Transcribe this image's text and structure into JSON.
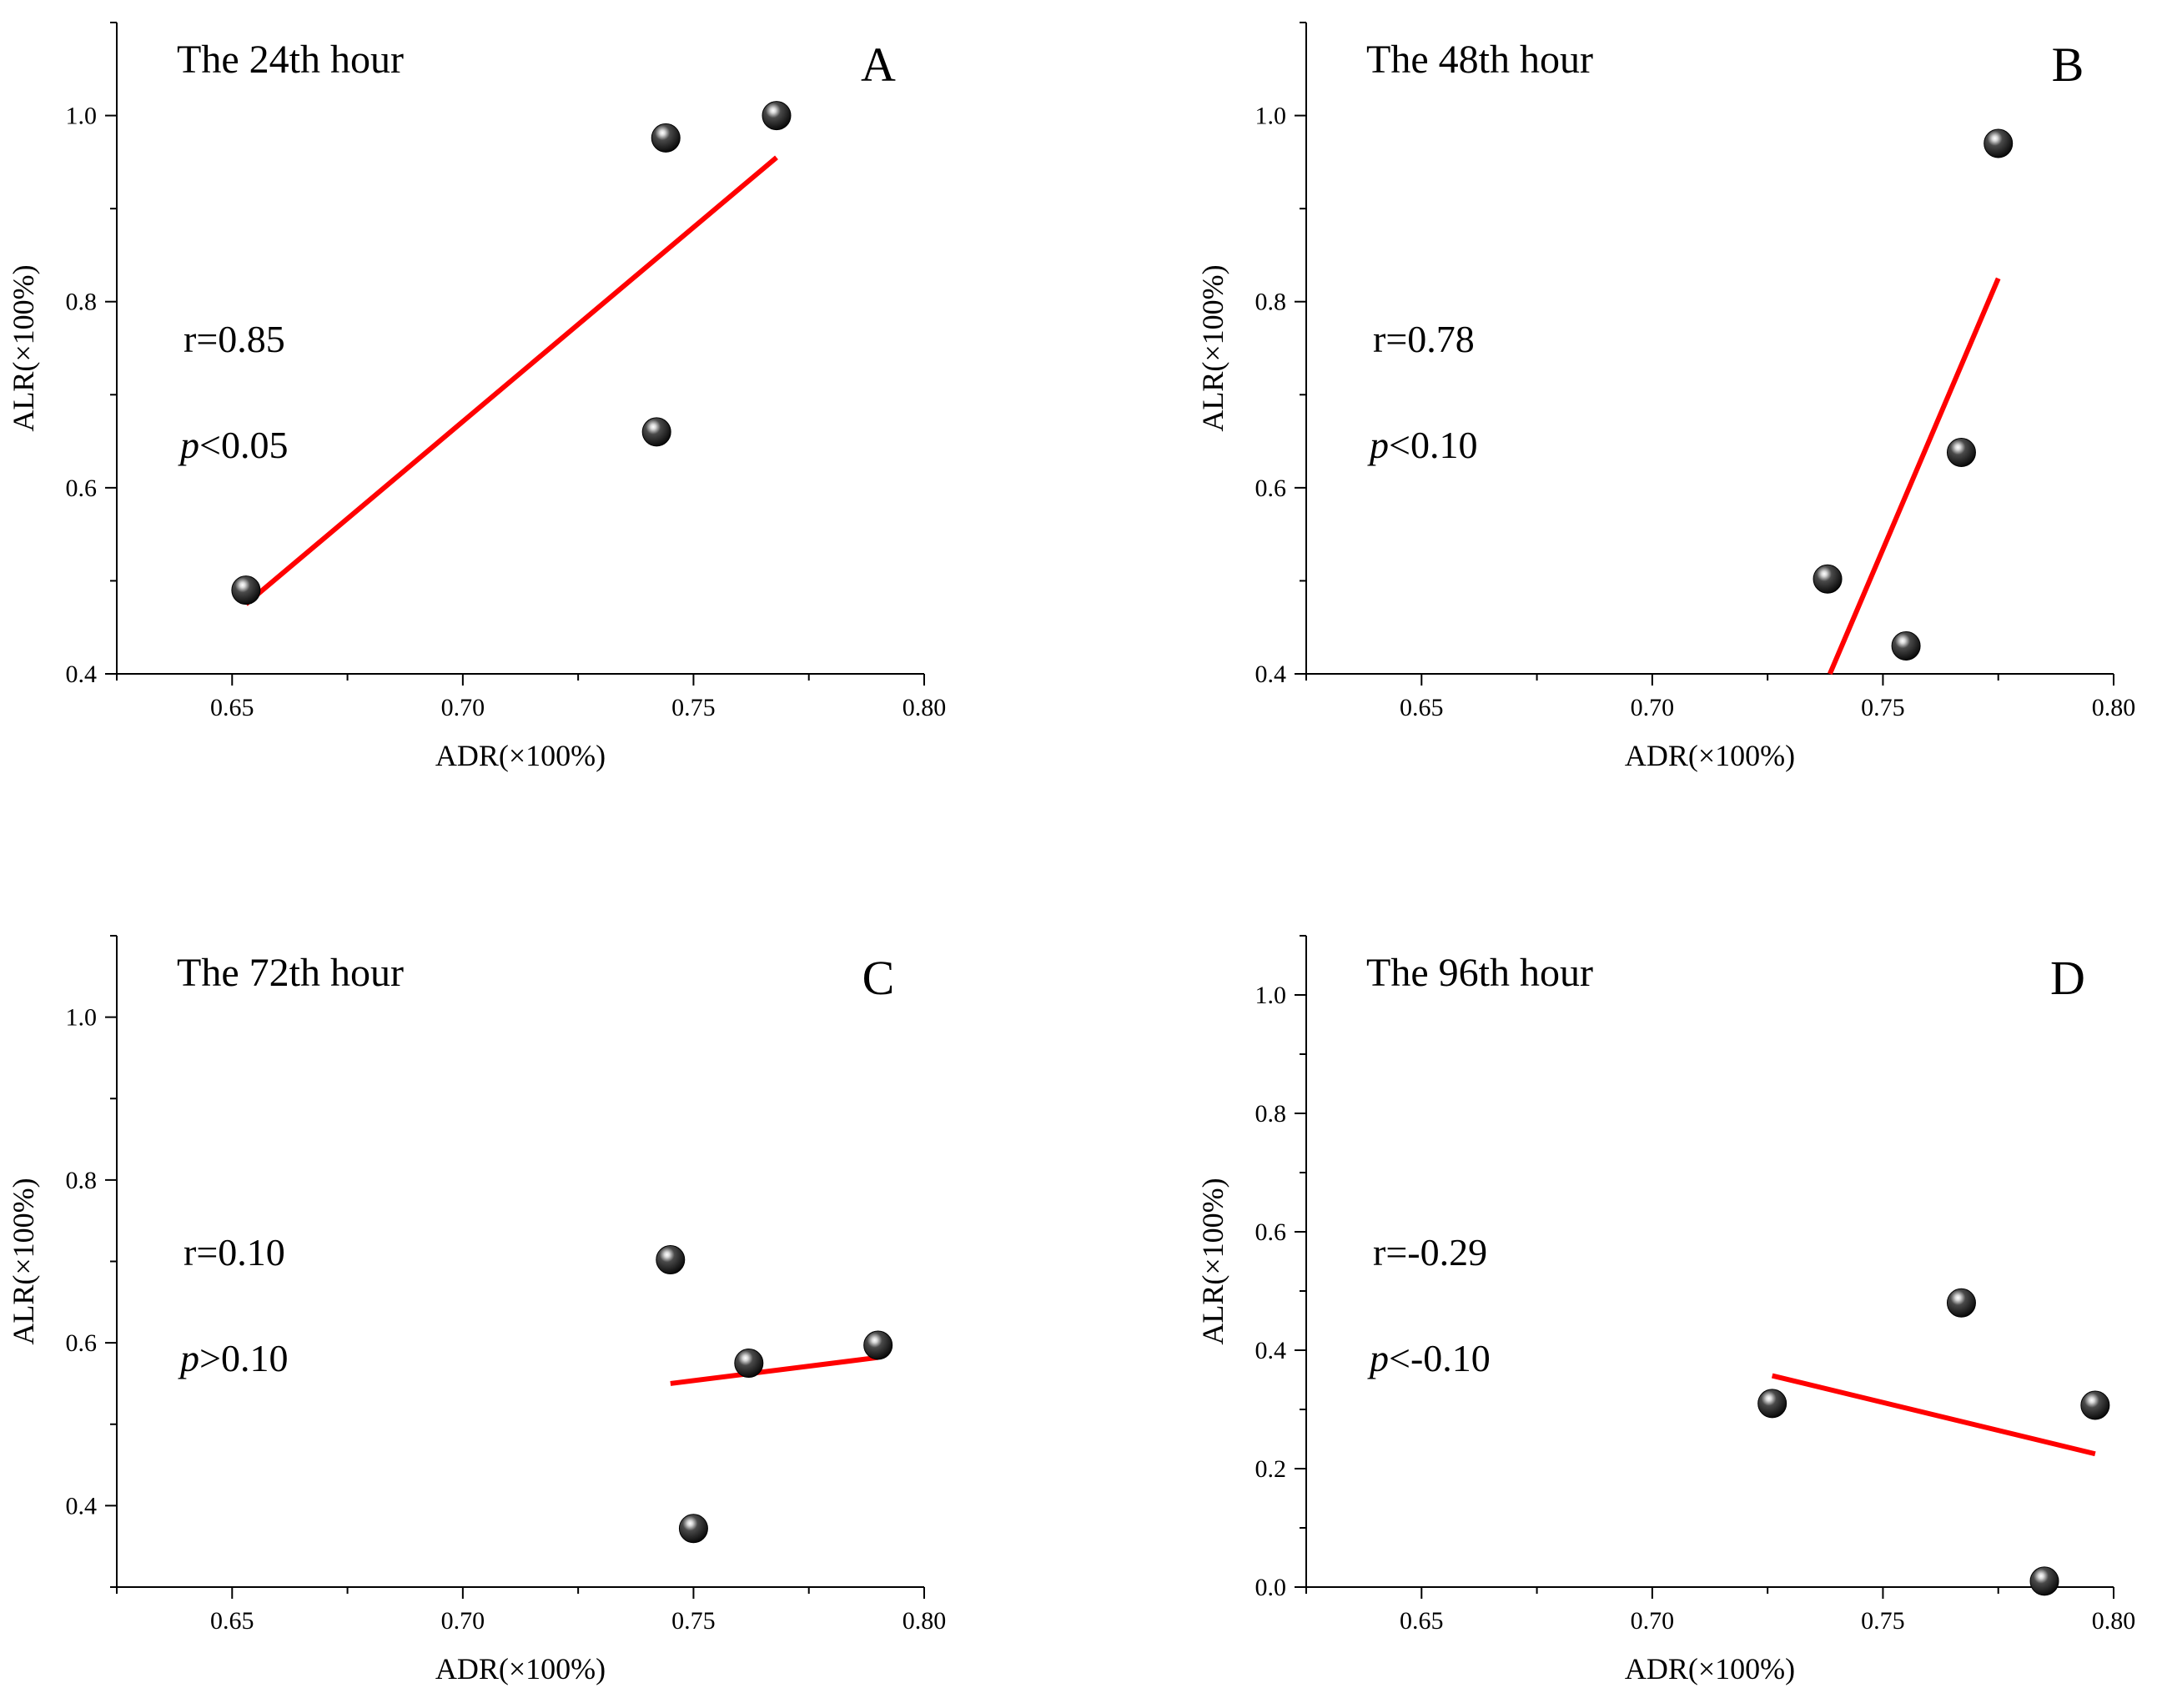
{
  "figure": {
    "colors": {
      "fit_line": "#ff0000",
      "point": "#000000",
      "axis": "#000000"
    }
  },
  "chart_data": [
    {
      "type": "scatter",
      "panel": "A",
      "title": "The 24th hour",
      "xlabel": "ADR(×100%)",
      "ylabel": "ALR(×100%)",
      "xlim": [
        0.625,
        0.8
      ],
      "ylim": [
        0.4,
        1.1
      ],
      "xticks": [
        "0.65",
        "0.70",
        "0.75",
        "0.80"
      ],
      "xtick_values": [
        0.65,
        0.7,
        0.75,
        0.8
      ],
      "yticks": [
        "0.4",
        "0.6",
        "0.8",
        "1.0"
      ],
      "ytick_values": [
        0.4,
        0.6,
        0.8,
        1.0
      ],
      "points": [
        [
          0.653,
          0.49
        ],
        [
          0.742,
          0.66
        ],
        [
          0.744,
          0.976
        ],
        [
          0.768,
          1.0
        ]
      ],
      "fit_line": [
        [
          0.653,
          0.475
        ],
        [
          0.768,
          0.955
        ]
      ],
      "r_label": "r=0.85",
      "p_symbol": "p",
      "p_rest": "<0.05"
    },
    {
      "type": "scatter",
      "panel": "B",
      "title": "The 48th hour",
      "xlabel": "ADR(×100%)",
      "ylabel": "ALR(×100%)",
      "xlim": [
        0.625,
        0.8
      ],
      "ylim": [
        0.4,
        1.1
      ],
      "xticks": [
        "0.65",
        "0.70",
        "0.75",
        "0.80"
      ],
      "xtick_values": [
        0.65,
        0.7,
        0.75,
        0.8
      ],
      "yticks": [
        "0.4",
        "0.6",
        "0.8",
        "1.0"
      ],
      "ytick_values": [
        0.4,
        0.6,
        0.8,
        1.0
      ],
      "points": [
        [
          0.738,
          0.502
        ],
        [
          0.755,
          0.43
        ],
        [
          0.767,
          0.638
        ],
        [
          0.775,
          0.97
        ]
      ],
      "fit_line": [
        [
          0.7385,
          0.4
        ],
        [
          0.775,
          0.825
        ]
      ],
      "r_label": "r=0.78",
      "p_symbol": "p",
      "p_rest": "<0.10"
    },
    {
      "type": "scatter",
      "panel": "C",
      "title": "The 72th hour",
      "xlabel": "ADR(×100%)",
      "ylabel": "ALR(×100%)",
      "xlim": [
        0.625,
        0.8
      ],
      "ylim": [
        0.3,
        1.1
      ],
      "xticks": [
        "0.65",
        "0.70",
        "0.75",
        "0.80"
      ],
      "xtick_values": [
        0.65,
        0.7,
        0.75,
        0.8
      ],
      "yticks": [
        "0.4",
        "0.6",
        "0.8",
        "1.0"
      ],
      "ytick_values": [
        0.4,
        0.6,
        0.8,
        1.0
      ],
      "points": [
        [
          0.745,
          0.702
        ],
        [
          0.75,
          0.372
        ],
        [
          0.762,
          0.575
        ],
        [
          0.79,
          0.597
        ]
      ],
      "fit_line": [
        [
          0.745,
          0.55
        ],
        [
          0.79,
          0.582
        ]
      ],
      "r_label": "r=0.10",
      "p_symbol": "p",
      "p_rest": ">0.10"
    },
    {
      "type": "scatter",
      "panel": "D",
      "title": "The 96th hour",
      "xlabel": "ADR(×100%)",
      "ylabel": "ALR(×100%)",
      "xlim": [
        0.625,
        0.8
      ],
      "ylim": [
        0.0,
        1.1
      ],
      "xticks": [
        "0.65",
        "0.70",
        "0.75",
        "0.80"
      ],
      "xtick_values": [
        0.65,
        0.7,
        0.75,
        0.8
      ],
      "yticks": [
        "0.0",
        "0.2",
        "0.4",
        "0.6",
        "0.8",
        "1.0"
      ],
      "ytick_values": [
        0.0,
        0.2,
        0.4,
        0.6,
        0.8,
        1.0
      ],
      "points": [
        [
          0.726,
          0.31
        ],
        [
          0.767,
          0.48
        ],
        [
          0.785,
          0.01
        ],
        [
          0.796,
          0.307
        ]
      ],
      "fit_line": [
        [
          0.726,
          0.357
        ],
        [
          0.796,
          0.225
        ]
      ],
      "r_label": "r=-0.29",
      "p_symbol": "p",
      "p_rest": "<-0.10"
    }
  ]
}
